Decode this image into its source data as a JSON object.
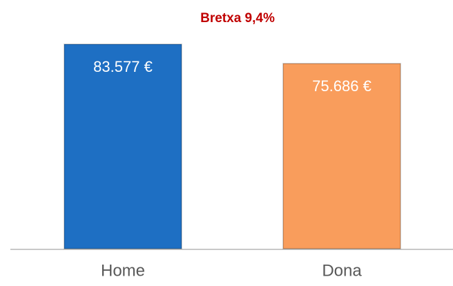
{
  "chart_data": {
    "type": "bar",
    "title": "Bretxa 9,4%",
    "categories": [
      "Home",
      "Dona"
    ],
    "values": [
      83577,
      75686
    ],
    "value_labels": [
      "83.577 €",
      "75.686 €"
    ],
    "colors": [
      "#1e6fc3",
      "#f99d5c"
    ]
  }
}
